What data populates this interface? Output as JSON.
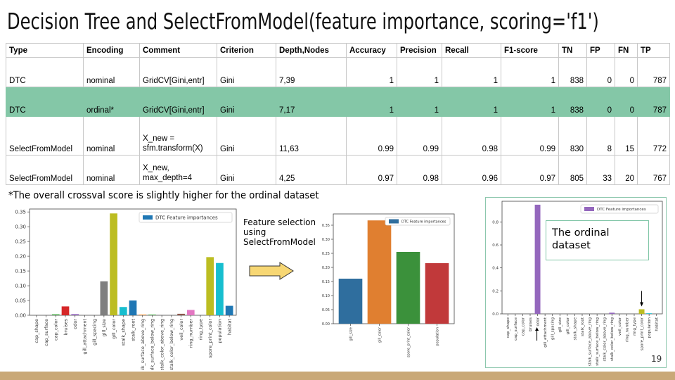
{
  "title": "Decision Tree and SelectFromModel(feature importance, scoring='f1')",
  "table": {
    "headers": [
      "Type",
      "Encoding",
      "Comment",
      "Criterion",
      "Depth,Nodes",
      "Accuracy",
      "Precision",
      "Recall",
      "F1-score",
      "TN",
      "FP",
      "FN",
      "TP"
    ],
    "rows": [
      {
        "type": "DTC",
        "encoding": "nominal",
        "comment": "GridCV[Gini,entr]",
        "criterion": "Gini",
        "depth_nodes": "7,39",
        "accuracy": "1",
        "precision": "1",
        "recall": "1",
        "f1": "1",
        "tn": "838",
        "fp": "0",
        "fn": "0",
        "tp": "787",
        "highlighted": false
      },
      {
        "type": "DTC",
        "encoding": "ordinal*",
        "comment": "GridCV[Gini,entr]",
        "criterion": "Gini",
        "depth_nodes": "7,17",
        "accuracy": "1",
        "precision": "1",
        "recall": "1",
        "f1": "1",
        "tn": "838",
        "fp": "0",
        "fn": "0",
        "tp": "787",
        "highlighted": true
      },
      {
        "type": "SelectFromModel",
        "encoding": "nominal",
        "comment": "X_new = sfm.transform(X)",
        "criterion": "Gini",
        "depth_nodes": "11,63",
        "accuracy": "0.99",
        "precision": "0.99",
        "recall": "0.98",
        "f1": "0.99",
        "tn": "830",
        "fp": "8",
        "fn": "15",
        "tp": "772",
        "highlighted": false
      },
      {
        "type": "SelectFromModel",
        "encoding": "nominal",
        "comment": "X_new, max_depth=4",
        "criterion": "Gini",
        "depth_nodes": "4,25",
        "accuracy": "0.97",
        "precision": "0.98",
        "recall": "0.96",
        "f1": "0.97",
        "tn": "805",
        "fp": "33",
        "fn": "20",
        "tp": "767",
        "highlighted": false
      }
    ],
    "highlight_color": "#84c7a7"
  },
  "footnote": "*The overall crossval score is slightly higher for the ordinal dataset",
  "feature_selection_label": [
    "Feature selection",
    "using",
    "SelectFromModel"
  ],
  "ordinal_box_label": [
    "The ordinal",
    "dataset"
  ],
  "page_number": "19",
  "arrow_color": "#f7d774",
  "chart_data": [
    {
      "type": "bar",
      "legend": "DTC Feature importances",
      "legend_placement": "top-right",
      "categories": [
        "cap_shape",
        "cap_surface",
        "cap_color",
        "bruises",
        "odor",
        "gill_attachment",
        "gill_spacing",
        "gill_size",
        "gill_color",
        "stalk_shape",
        "stalk_root",
        "stalk_surface_above_ring",
        "stalk_surface_below_ring",
        "stalk_color_above_ring",
        "stalk_color_below_ring",
        "veil_color",
        "ring_number",
        "ring_type",
        "spore_print_color",
        "population",
        "habitat"
      ],
      "values": [
        0.0,
        0.0,
        0.003,
        0.03,
        0.004,
        0.0,
        0.0,
        0.115,
        0.345,
        0.028,
        0.05,
        0.002,
        0.002,
        0.0,
        0.0,
        0.005,
        0.018,
        0.0,
        0.197,
        0.177,
        0.032
      ],
      "colors": [
        "#1f77b4",
        "#ff7f0e",
        "#2ca02c",
        "#d62728",
        "#9467bd",
        "#8c564b",
        "#e377c2",
        "#7f7f7f",
        "#bcbd22",
        "#17becf",
        "#1f77b4",
        "#ff7f0e",
        "#2ca02c",
        "#d62728",
        "#9467bd",
        "#8c564b",
        "#e377c2",
        "#7f7f7f",
        "#bcbd22",
        "#17becf",
        "#1f77b4"
      ],
      "yticks": [
        "0.00",
        "0.05",
        "0.10",
        "0.15",
        "0.20",
        "0.25",
        "0.30",
        "0.35"
      ],
      "ylim": [
        0,
        0.36
      ]
    },
    {
      "type": "bar",
      "legend": "DTC Feature importances",
      "legend_placement": "top-right",
      "categories": [
        "gill_size",
        "gill_color",
        "spore_print_color",
        "population"
      ],
      "values": [
        0.16,
        0.367,
        0.255,
        0.215
      ],
      "colors": [
        "#2f6e9e",
        "#e07f30",
        "#3b913b",
        "#c1393a"
      ],
      "yticks": [
        "0.00",
        "0.05",
        "0.10",
        "0.15",
        "0.20",
        "0.25",
        "0.30",
        "0.35"
      ],
      "ylim": [
        0,
        0.39
      ]
    },
    {
      "type": "bar",
      "legend": "DTC Feature importances",
      "legend_placement": "top-right",
      "categories": [
        "cap_shape",
        "cap_surface",
        "cap_color",
        "bruises",
        "odor",
        "gill_attachment",
        "gill_spacing",
        "gill_size",
        "gill_color",
        "stalk_shape",
        "stalk_root",
        "stalk_surface_above_ring",
        "stalk_surface_below_ring",
        "stalk_color_above_ring",
        "stalk_color_below_ring",
        "veil_color",
        "ring_number",
        "ring_type",
        "spore_print_color",
        "population",
        "habitat"
      ],
      "values": [
        0.0,
        0.0,
        0.0,
        0.0,
        0.95,
        0.0,
        0.0,
        0.0,
        0.0,
        0.0,
        0.0,
        0.0,
        0.0,
        0.0,
        0.01,
        0.0,
        0.0,
        0.0,
        0.04,
        0.005,
        0.0
      ],
      "colors": [
        "#9467bd",
        "#9467bd",
        "#9467bd",
        "#9467bd",
        "#9467bd",
        "#8c564b",
        "#e377c2",
        "#7f7f7f",
        "#bcbd22",
        "#17becf",
        "#1f77b4",
        "#ff7f0e",
        "#2ca02c",
        "#d62728",
        "#9467bd",
        "#8c564b",
        "#e377c2",
        "#7f7f7f",
        "#bcbd22",
        "#17becf",
        "#1f77b4"
      ],
      "yticks": [
        "0.0",
        "0.2",
        "0.4",
        "0.6",
        "0.8"
      ],
      "ylim": [
        0,
        0.98
      ]
    }
  ]
}
